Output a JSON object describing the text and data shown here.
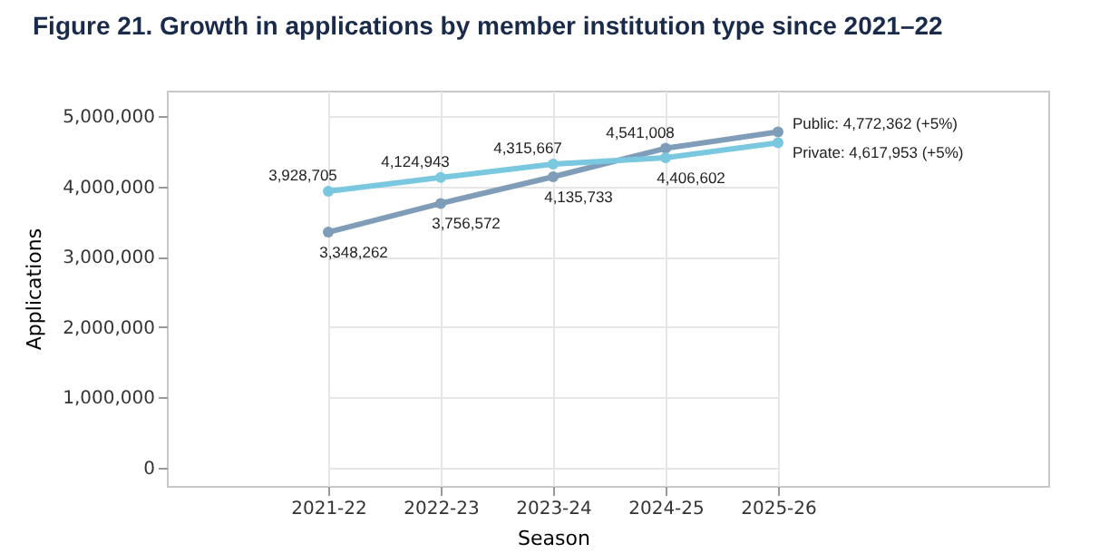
{
  "chart_data": {
    "type": "line",
    "title": "Figure 21. Growth in applications by member institution type since 2021–22",
    "xlabel": "Season",
    "ylabel": "Applications",
    "categories": [
      "2021-22",
      "2022-23",
      "2023-24",
      "2024-25",
      "2025-26"
    ],
    "series": [
      {
        "color": "#7f9cb8",
        "values": [
          3348262,
          3756572,
          4135733,
          4541008,
          4772362
        ],
        "value_labels": [
          "3,348,262",
          "3,756,572",
          "4,135,733",
          "4,541,008",
          null
        ]
      },
      {
        "color": "#79c8e0",
        "values": [
          3928705,
          4124943,
          4315667,
          4406602,
          4617953
        ],
        "value_labels": [
          "3,928,705",
          "4,124,943",
          "4,315,667",
          "4,406,602",
          null
        ]
      }
    ],
    "annotations": [
      {
        "text": "Public: 4,772,362 (+5%)",
        "x": "2025-26",
        "y": 4772362
      },
      {
        "text": "Private: 4,617,953 (+5%)",
        "x": "2025-26",
        "y": 4617953
      }
    ],
    "ylim": [
      -260000,
      5360000
    ],
    "yticks": [
      {
        "value": 0,
        "label": "0"
      },
      {
        "value": 1000000,
        "label": "1,000,000"
      },
      {
        "value": 2000000,
        "label": "2,000,000"
      },
      {
        "value": 3000000,
        "label": "3,000,000"
      },
      {
        "value": 4000000,
        "label": "4,000,000"
      },
      {
        "value": 5000000,
        "label": "5,000,000"
      }
    ],
    "grid": true,
    "legend": false,
    "marker": "circle",
    "line_style": "solid"
  }
}
